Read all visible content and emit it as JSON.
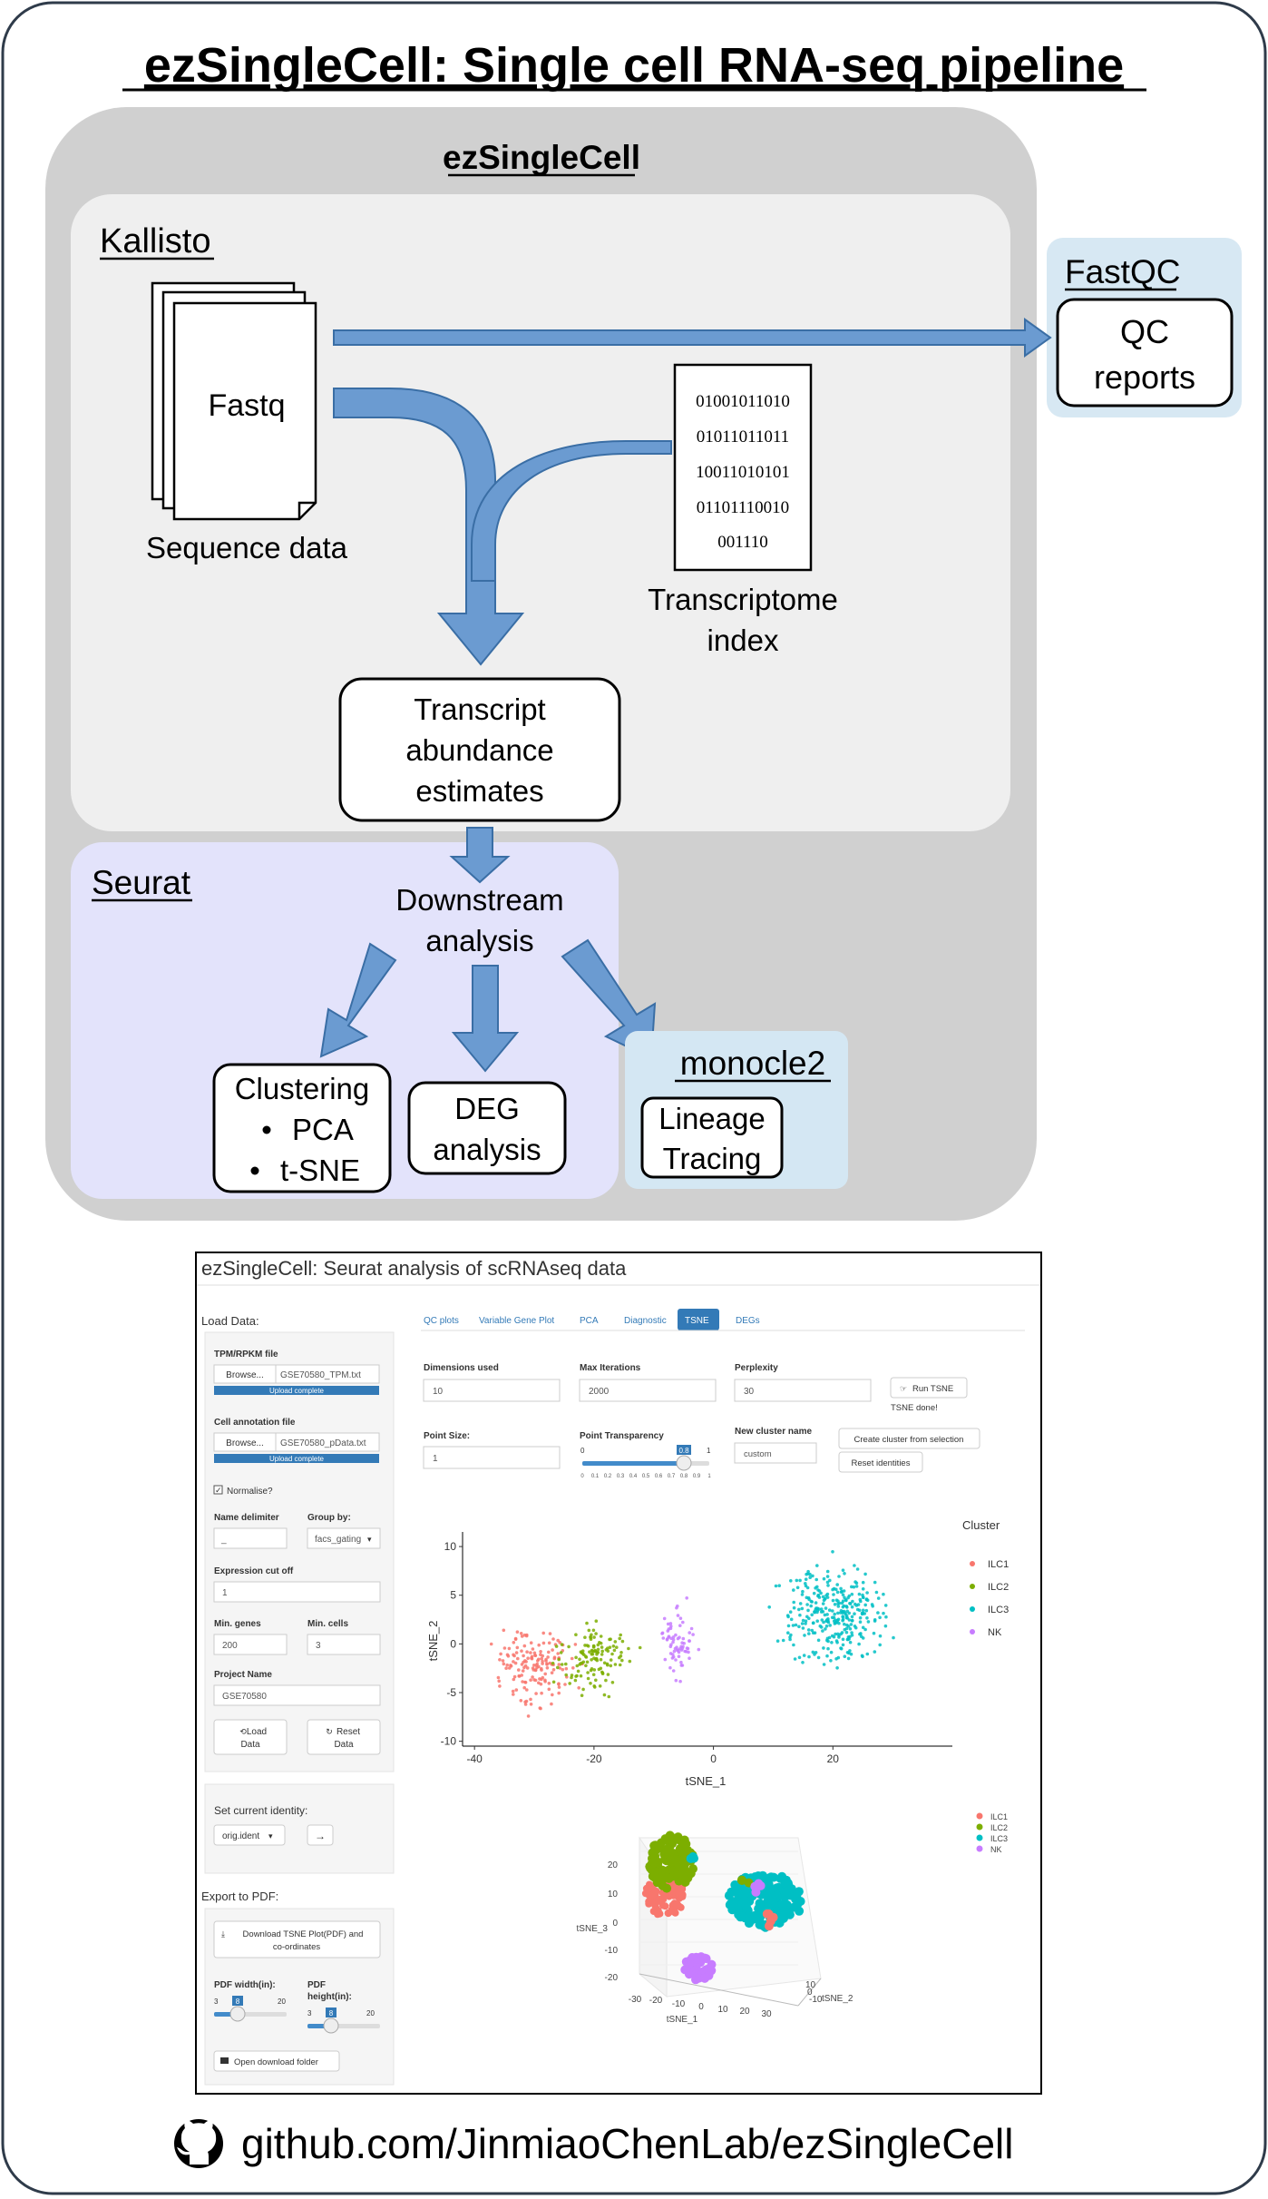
{
  "title": "ezSingleCell: Single cell RNA-seq pipeline",
  "ezsinglecell_label": "ezSingleCell",
  "kallisto": {
    "label": "Kallisto",
    "fastq": "Fastq",
    "sequence_data": "Sequence data",
    "binary": [
      "01001011010",
      "01011011011",
      "10011010101",
      "01101110010",
      "001110"
    ],
    "index_line1": "Transcriptome",
    "index_line2": "index",
    "abundance": [
      "Transcript",
      "abundance",
      "estimates"
    ]
  },
  "fastqc": {
    "label": "FastQC",
    "box_line1": "QC",
    "box_line2": "reports"
  },
  "seurat": {
    "label": "Seurat",
    "downstream_line1": "Downstream",
    "downstream_line2": "analysis",
    "clustering": "Clustering",
    "pca": "PCA",
    "tsne": "t-SNE",
    "deg_line1": "DEG",
    "deg_line2": "analysis"
  },
  "monocle": {
    "label": "monocle2",
    "line1": "Lineage",
    "line2": "Tracing"
  },
  "app": {
    "title": "ezSingleCell: Seurat analysis of scRNAseq data",
    "load_data": "Load Data:",
    "tpm_label": "TPM/RPKM file",
    "browse": "Browse...",
    "tpm_file": "GSE70580_TPM.txt",
    "upload_complete": "Upload complete",
    "annot_label": "Cell annotation file",
    "annot_file": "GSE70580_pData.txt",
    "normalise": "Normalise?",
    "name_delim_label": "Name delimiter",
    "name_delim_value": "_",
    "group_by_label": "Group by:",
    "group_by_value": "facs_gating",
    "expr_cutoff_label": "Expression cut off",
    "expr_cutoff_value": "1",
    "min_genes_label": "Min. genes",
    "min_genes_value": "200",
    "min_cells_label": "Min. cells",
    "min_cells_value": "3",
    "project_label": "Project Name",
    "project_value": "GSE70580",
    "load_btn_1": "Load",
    "load_btn_2": "Data",
    "reset_btn_1": "Reset",
    "reset_btn_2": "Data",
    "set_identity": "Set current identity:",
    "orig_ident": "orig.ident",
    "export_pdf": "Export to PDF:",
    "download_1": "Download TSNE Plot(PDF) and",
    "download_2": "co-ordinates",
    "pdf_width": "PDF width(in):",
    "pdf_height_1": "PDF",
    "pdf_height_2": "height(in):",
    "slider_min": "3",
    "slider_val": "8",
    "slider_max": "20",
    "open_folder": "Open download folder",
    "tabs": [
      "QC plots",
      "Variable Gene Plot",
      "PCA",
      "Diagnostic",
      "TSNE",
      "DEGs"
    ],
    "active_tab": "TSNE",
    "dims_label": "Dimensions used",
    "dims_value": "10",
    "iter_label": "Max Iterations",
    "iter_value": "2000",
    "perp_label": "Perplexity",
    "perp_value": "30",
    "run_tsne": "Run TSNE",
    "tsne_done": "TSNE done!",
    "point_size_label": "Point Size:",
    "point_size_value": "1",
    "transp_label": "Point Transparency",
    "transp_value": "0.8",
    "transp_ticks": [
      "0",
      "0.1",
      "0.2",
      "0.3",
      "0.4",
      "0.5",
      "0.6",
      "0.7",
      "0.8",
      "0.9",
      "1"
    ],
    "transp_min": "0",
    "transp_max": "1",
    "cluster_name_label": "New cluster name",
    "cluster_name_value": "custom",
    "create_cluster": "Create cluster from selection",
    "reset_identities": "Reset identities",
    "legend_title": "Cluster",
    "legend_items": [
      "ILC1",
      "ILC2",
      "ILC3",
      "NK"
    ],
    "colors": {
      "ILC1": "#F8766D",
      "ILC2": "#7CAE00",
      "ILC3": "#00BFC4",
      "NK": "#C77CFF",
      "active_tab": "#337ab7"
    }
  },
  "chart_data": {
    "type": "scatter",
    "xlabel": "tSNE_1",
    "ylabel": "tSNE_2",
    "xticks": [
      -40,
      -20,
      0,
      20
    ],
    "yticks": [
      10,
      5,
      0,
      -5,
      -10
    ],
    "xlim": [
      -40,
      40
    ],
    "ylim": [
      -10,
      10
    ],
    "series": [
      {
        "name": "ILC1",
        "color": "#F8766D",
        "center": [
          -30,
          -2.5
        ],
        "spread": [
          5,
          3
        ],
        "n": 160
      },
      {
        "name": "ILC2",
        "color": "#7CAE00",
        "center": [
          -20,
          -1.5
        ],
        "spread": [
          5,
          3
        ],
        "n": 130
      },
      {
        "name": "NK",
        "color": "#C77CFF",
        "center": [
          -6,
          0
        ],
        "spread": [
          2.5,
          3
        ],
        "n": 70
      },
      {
        "name": "ILC3",
        "color": "#00BFC4",
        "center": [
          20,
          3
        ],
        "spread": [
          7,
          4.5
        ],
        "n": 320
      }
    ],
    "plot3d": {
      "legend": [
        "ILC1",
        "ILC2",
        "ILC3",
        "NK"
      ],
      "z_label": "tSNE_3",
      "x_label": "tSNE_1",
      "y_label": "tSNE_2",
      "z_ticks": [
        "20",
        "10",
        "0",
        "-10",
        "-20"
      ],
      "x_ticks": [
        "-30",
        "-20",
        "-10",
        "0",
        "10",
        "20",
        "30"
      ],
      "y_ticks": [
        "10",
        "0",
        "-10"
      ]
    }
  },
  "footer": {
    "github": "github.com/JinmiaoChenLab/ezSingleCell"
  }
}
